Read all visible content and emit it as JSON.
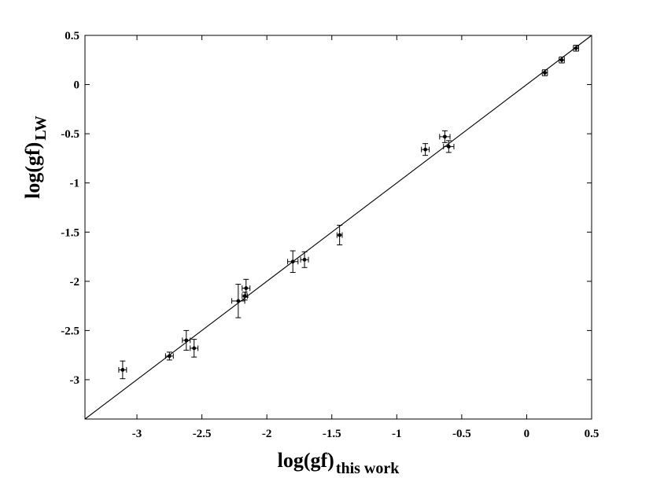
{
  "chart_data": {
    "type": "scatter",
    "xlabel": "log(gf)",
    "xlabel_sub": "this work",
    "ylabel": "log(gf)",
    "ylabel_sub": "LW",
    "xlim": [
      -3.4,
      0.5
    ],
    "ylim": [
      -3.4,
      0.5
    ],
    "xticks": [
      -3,
      -2.5,
      -2,
      -1.5,
      -1,
      -0.5,
      0,
      0.5
    ],
    "yticks": [
      0.5,
      0,
      -0.5,
      -1,
      -1.5,
      -2,
      -2.5,
      -3
    ],
    "xtick_labels": [
      "-3",
      "-2.5",
      "-2",
      "-1.5",
      "-1",
      "-0.5",
      "0",
      "0.5"
    ],
    "ytick_labels": [
      "0.5",
      "0",
      "-0.5",
      "-1",
      "-1.5",
      "-2",
      "-2.5",
      "-3"
    ],
    "grid": false,
    "reference_line": {
      "type": "identity",
      "x": [
        -3.4,
        0.5
      ],
      "y": [
        -3.4,
        0.5
      ]
    },
    "points": [
      {
        "x": -3.11,
        "y": -2.9,
        "xerr": 0.03,
        "yerr": 0.09
      },
      {
        "x": -2.75,
        "y": -2.76,
        "xerr": 0.03,
        "yerr": 0.04
      },
      {
        "x": -2.62,
        "y": -2.6,
        "xerr": 0.03,
        "yerr": 0.1
      },
      {
        "x": -2.56,
        "y": -2.68,
        "xerr": 0.03,
        "yerr": 0.09
      },
      {
        "x": -2.22,
        "y": -2.2,
        "xerr": 0.05,
        "yerr": 0.17
      },
      {
        "x": -2.17,
        "y": -2.15,
        "xerr": 0.02,
        "yerr": 0.04
      },
      {
        "x": -2.16,
        "y": -2.07,
        "xerr": 0.03,
        "yerr": 0.09
      },
      {
        "x": -1.8,
        "y": -1.8,
        "xerr": 0.04,
        "yerr": 0.11
      },
      {
        "x": -1.71,
        "y": -1.78,
        "xerr": 0.03,
        "yerr": 0.08
      },
      {
        "x": -1.44,
        "y": -1.53,
        "xerr": 0.02,
        "yerr": 0.1
      },
      {
        "x": -0.78,
        "y": -0.66,
        "xerr": 0.03,
        "yerr": 0.06
      },
      {
        "x": -0.63,
        "y": -0.53,
        "xerr": 0.04,
        "yerr": 0.06
      },
      {
        "x": -0.6,
        "y": -0.63,
        "xerr": 0.04,
        "yerr": 0.06
      },
      {
        "x": 0.14,
        "y": 0.12,
        "xerr": 0.02,
        "yerr": 0.03
      },
      {
        "x": 0.27,
        "y": 0.25,
        "xerr": 0.02,
        "yerr": 0.03
      },
      {
        "x": 0.38,
        "y": 0.37,
        "xerr": 0.02,
        "yerr": 0.03
      }
    ]
  }
}
